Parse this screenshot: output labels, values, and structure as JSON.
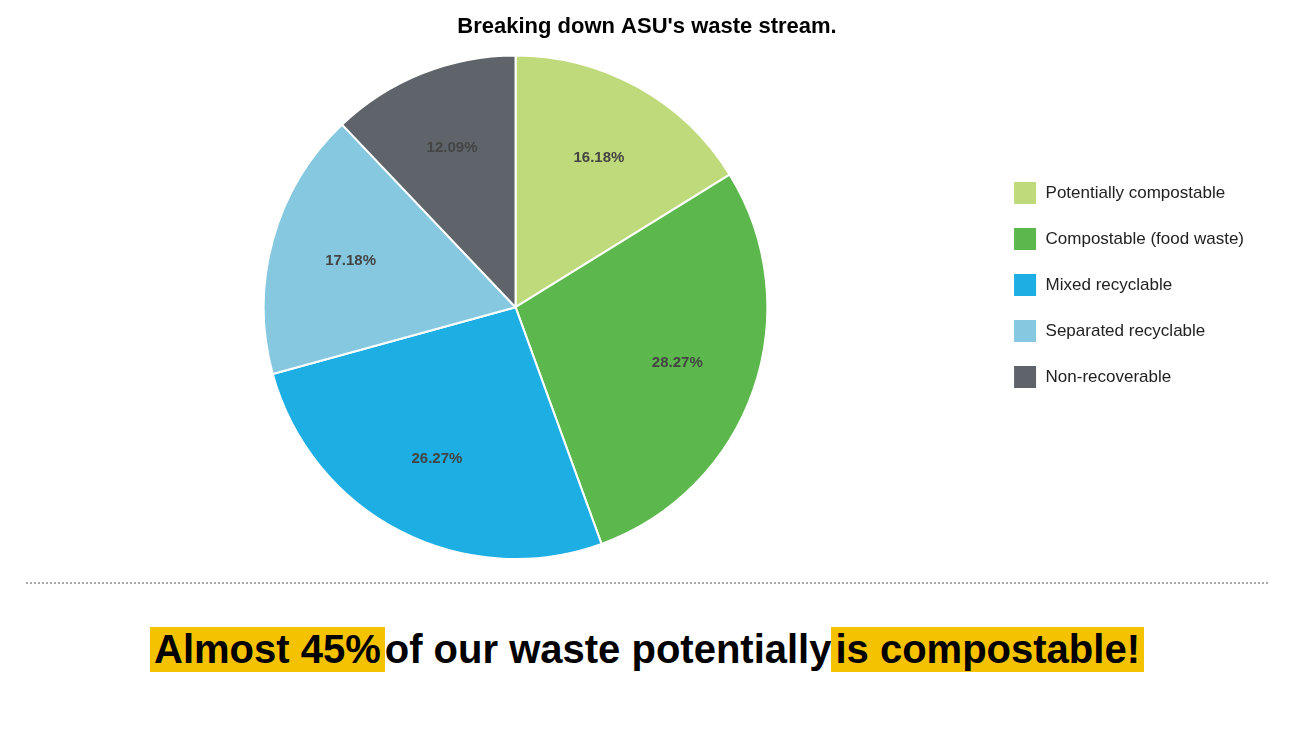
{
  "chart_data": {
    "type": "pie",
    "title": "Breaking down ASU's waste stream.",
    "categories": [
      "Potentially compostable",
      "Compostable (food waste)",
      "Mixed recyclable",
      "Separated recyclable",
      "Non-recoverable"
    ],
    "values": [
      16.18,
      28.27,
      26.27,
      17.18,
      12.09
    ],
    "value_labels": [
      "16.18%",
      "28.27%",
      "26.27%",
      "17.18%",
      "12.09%"
    ],
    "colors": [
      "#BFDA7A",
      "#5CB84C",
      "#1DAEE3",
      "#85C8E0",
      "#5E6469"
    ],
    "data_labels": true,
    "legend": "right",
    "annotation": [
      "Almost 45%",
      "of our waste potentially",
      "is compostable!"
    ]
  }
}
